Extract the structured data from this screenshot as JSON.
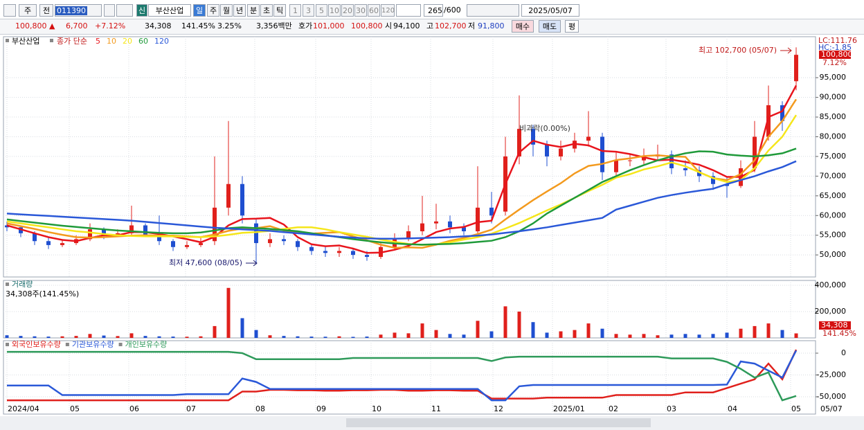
{
  "toolbar": {
    "period": "주",
    "prev": "전",
    "code": "011390",
    "new_tag": "신",
    "name": "부산산업",
    "intervals": [
      "일",
      "주",
      "월",
      "년",
      "분",
      "초",
      "틱"
    ],
    "minutes": [
      "1",
      "3",
      "5",
      "10",
      "20",
      "30",
      "60",
      "120"
    ],
    "count": "265",
    "max_count": "/600",
    "date": "2025/05/07"
  },
  "quote": {
    "price": "100,800 ▲",
    "change": "6,700",
    "change_pct": "+7.12%",
    "volume": "34,308",
    "volume_ratio": "141.45%",
    "turnover": "3.25%",
    "amount": "3,356백만",
    "ask_label": "호가",
    "ask": "101,000",
    "bid": "100,800",
    "open_label": "시",
    "open": "94,100",
    "high_label": "고",
    "high": "102,700",
    "low_label": "저",
    "low": "91,800",
    "buy": "매수",
    "sell": "매도",
    "avg": "평"
  },
  "chart_data": [
    {
      "type": "candlestick",
      "title": "부산산업",
      "ma_label": "종가 단순",
      "up_color": "#e0201c",
      "down_color": "#1f4fd0",
      "grid": true,
      "xlim": [
        -0.25,
        58.4
      ],
      "ylim": [
        44400,
        105400
      ],
      "yticks": [
        {
          "value": 50000,
          "label": "50,000"
        },
        {
          "value": 55000,
          "label": "55,000"
        },
        {
          "value": 60000,
          "label": "60,000"
        },
        {
          "value": 65000,
          "label": "65,000"
        },
        {
          "value": 70000,
          "label": "70,000"
        },
        {
          "value": 75000,
          "label": "75,000"
        },
        {
          "value": 80000,
          "label": "80,000"
        },
        {
          "value": 85000,
          "label": "85,000"
        },
        {
          "value": 90000,
          "label": "90,000"
        },
        {
          "value": 95000,
          "label": "95,000"
        }
      ],
      "candles": [
        [
          57500,
          58500,
          56000,
          57000
        ],
        [
          57000,
          57500,
          54500,
          55500
        ],
        [
          55500,
          56000,
          52500,
          53500
        ],
        [
          53500,
          54500,
          51500,
          52500
        ],
        [
          52500,
          54000,
          52000,
          53000
        ],
        [
          53000,
          55000,
          52500,
          54000
        ],
        [
          54000,
          58000,
          53500,
          56500
        ],
        [
          56500,
          57000,
          54000,
          55000
        ],
        [
          55000,
          56500,
          54500,
          55500
        ],
        [
          55500,
          62500,
          55000,
          57500
        ],
        [
          57500,
          58000,
          54500,
          55000
        ],
        [
          55000,
          60000,
          52500,
          53500
        ],
        [
          53500,
          54000,
          51000,
          52000
        ],
        [
          52000,
          53500,
          51500,
          52500
        ],
        [
          52500,
          54500,
          52000,
          53000
        ],
        [
          53500,
          75000,
          52500,
          62000
        ],
        [
          62000,
          84000,
          60000,
          68000
        ],
        [
          68000,
          70000,
          58000,
          60000
        ],
        [
          58000,
          59000,
          47600,
          53000
        ],
        [
          53000,
          55500,
          52000,
          54000
        ],
        [
          54000,
          55000,
          52500,
          53500
        ],
        [
          53500,
          54000,
          51000,
          52000
        ],
        [
          52000,
          52500,
          50000,
          51000
        ],
        [
          51000,
          52000,
          49500,
          50500
        ],
        [
          50500,
          52000,
          49500,
          51000
        ],
        [
          51000,
          51500,
          49000,
          50000
        ],
        [
          50000,
          51000,
          48500,
          49500
        ],
        [
          49500,
          53000,
          49000,
          52000
        ],
        [
          52000,
          55500,
          51500,
          54000
        ],
        [
          54000,
          57500,
          53500,
          56000
        ],
        [
          56000,
          65000,
          55000,
          58000
        ],
        [
          58000,
          63000,
          56500,
          58500
        ],
        [
          58500,
          60000,
          55500,
          57000
        ],
        [
          57000,
          58000,
          55000,
          56000
        ],
        [
          56000,
          72500,
          55500,
          62000
        ],
        [
          62000,
          66000,
          58000,
          60000
        ],
        [
          61000,
          80000,
          60000,
          75000
        ],
        [
          75000,
          90500,
          73000,
          82000
        ],
        [
          82000,
          83000,
          75000,
          78000
        ],
        [
          78000,
          79000,
          72500,
          75000
        ],
        [
          75000,
          79000,
          74000,
          77000
        ],
        [
          77000,
          81000,
          76000,
          79000
        ],
        [
          79000,
          86500,
          77500,
          80000
        ],
        [
          80000,
          81000,
          69000,
          71000
        ],
        [
          71000,
          76000,
          70000,
          74000
        ],
        [
          74000,
          75500,
          72500,
          74000
        ],
        [
          74000,
          77000,
          73000,
          75000
        ],
        [
          75000,
          78000,
          74000,
          75500
        ],
        [
          75500,
          76500,
          70500,
          72000
        ],
        [
          72000,
          74000,
          70000,
          71500
        ],
        [
          71500,
          72500,
          68500,
          70000
        ],
        [
          70000,
          71000,
          66500,
          68000
        ],
        [
          68000,
          70000,
          64500,
          67500
        ],
        [
          67500,
          74000,
          67000,
          72000
        ],
        [
          72000,
          84000,
          71000,
          80000
        ],
        [
          80000,
          93000,
          79000,
          88000
        ],
        [
          88000,
          89000,
          81500,
          84000
        ],
        [
          94100,
          102700,
          91800,
          100800
        ]
      ],
      "series": [
        {
          "name": "5",
          "color": "#e8141c",
          "values": [
            57500,
            56500,
            55500,
            54500,
            53800,
            53500,
            54300,
            55000,
            55000,
            55800,
            55800,
            55300,
            54700,
            54000,
            53200,
            54600,
            57500,
            59100,
            59200,
            59400,
            57700,
            54500,
            52700,
            52200,
            52400,
            51600,
            50500,
            50600,
            51300,
            52300,
            54000,
            55800,
            56700,
            57100,
            58300,
            58700,
            68000,
            76000,
            79000,
            78000,
            77400,
            78200,
            77800,
            76400,
            76200,
            75600,
            74800,
            74000,
            74200,
            73600,
            72900,
            71500,
            69800,
            69800,
            71600,
            85000,
            86500,
            93000
          ]
        },
        {
          "name": "10",
          "color": "#f39a1e",
          "values": [
            58000,
            57300,
            56600,
            55800,
            55100,
            54500,
            54400,
            54500,
            54700,
            54900,
            55000,
            54900,
            54900,
            54700,
            54500,
            55200,
            56100,
            56700,
            56800,
            57300,
            56200,
            55900,
            55400,
            55600,
            55800,
            54700,
            53700,
            52600,
            51800,
            51900,
            51800,
            52600,
            53600,
            54300,
            55300,
            56400,
            59000,
            61500,
            63900,
            66100,
            68200,
            70700,
            72600,
            73100,
            74100,
            74500,
            75100,
            75300,
            75000,
            74900,
            71000,
            69500,
            69000,
            70500,
            74000,
            80000,
            84000,
            89500
          ]
        },
        {
          "name": "20",
          "color": "#f5e61a",
          "values": [
            58500,
            58000,
            57500,
            57000,
            56500,
            56000,
            55700,
            55300,
            55000,
            54800,
            54700,
            54700,
            54700,
            54600,
            54500,
            54700,
            55100,
            55600,
            55800,
            56100,
            56600,
            57000,
            57000,
            56500,
            55800,
            55200,
            54600,
            53900,
            53300,
            52800,
            52500,
            52700,
            53200,
            53900,
            54500,
            55400,
            56700,
            58100,
            59700,
            61300,
            62800,
            64500,
            66200,
            67800,
            69600,
            70500,
            71700,
            72500,
            73500,
            72500,
            71000,
            69500,
            68500,
            69000,
            72000,
            76500,
            80000,
            85500
          ]
        },
        {
          "name": "60",
          "color": "#1f9a3a",
          "values": [
            59000,
            58600,
            58200,
            57800,
            57400,
            57100,
            56800,
            56500,
            56200,
            56000,
            55800,
            55600,
            55500,
            55500,
            55700,
            56200,
            56800,
            57000,
            56800,
            56600,
            56300,
            56000,
            55500,
            55000,
            54500,
            54000,
            53600,
            53200,
            52900,
            52700,
            52600,
            52700,
            52800,
            53000,
            53300,
            53600,
            54500,
            56000,
            58000,
            60500,
            62500,
            64500,
            66500,
            68500,
            70000,
            71500,
            72800,
            74000,
            75000,
            75800,
            76300,
            76200,
            75500,
            75200,
            75000,
            75300,
            75800,
            77000
          ]
        },
        {
          "name": "120",
          "color": "#2a58d8",
          "values": [
            60500,
            60300,
            60100,
            59900,
            59700,
            59500,
            59300,
            59100,
            58900,
            58700,
            58400,
            58100,
            57800,
            57500,
            57200,
            56900,
            56700,
            56500,
            56300,
            56100,
            55800,
            55500,
            55200,
            54900,
            54600,
            54400,
            54200,
            54100,
            54100,
            54200,
            54300,
            54400,
            54500,
            54700,
            54900,
            55200,
            55600,
            56000,
            56500,
            57000,
            57600,
            58200,
            58800,
            59400,
            61500,
            62500,
            63500,
            64500,
            65200,
            65800,
            66300,
            66800,
            68000,
            69000,
            70000,
            71200,
            72300,
            73800
          ]
        }
      ],
      "high_label": "최고 102,700 (05/07)",
      "low_label": "최저 47,600 (08/05)",
      "event_label": "비과락(0.00%)",
      "lc_label": "LC:111.76",
      "hc_label": "HC:-1.85",
      "last_price": "100,800",
      "last_pct": "7.12%"
    },
    {
      "type": "bar",
      "title": "거래량",
      "subtitle": "34,308주(141.45%)",
      "xlim": [
        -0.25,
        58.4
      ],
      "ylim": [
        0,
        436800
      ],
      "yticks": [
        {
          "value": 200000,
          "label": "200,000"
        },
        {
          "value": 400000,
          "label": "400,000"
        }
      ],
      "values": [
        20000,
        15000,
        12000,
        10000,
        12000,
        15000,
        30000,
        18000,
        14000,
        35000,
        15000,
        12000,
        10000,
        9000,
        12000,
        90000,
        380000,
        150000,
        60000,
        20000,
        15000,
        12000,
        10000,
        9000,
        12000,
        8000,
        10000,
        25000,
        40000,
        35000,
        110000,
        60000,
        30000,
        25000,
        130000,
        50000,
        240000,
        200000,
        120000,
        40000,
        50000,
        60000,
        110000,
        70000,
        30000,
        25000,
        30000,
        20000,
        25000,
        30000,
        25000,
        30000,
        40000,
        70000,
        90000,
        110000,
        60000,
        34308
      ],
      "last_label": "34,308",
      "last_pct": "141.45%"
    },
    {
      "type": "line",
      "xlim": [
        -0.25,
        58.4
      ],
      "ylim": [
        -69800,
        14300
      ],
      "yticks": [
        {
          "value": 0,
          "label": "0"
        },
        {
          "value": -25000,
          "label": "-25,000"
        },
        {
          "value": -50000,
          "label": "-50,000"
        }
      ],
      "xticks": [
        {
          "value": 0,
          "label": "2024/04"
        },
        {
          "value": 4.5,
          "label": "05"
        },
        {
          "value": 8.8,
          "label": "06"
        },
        {
          "value": 12.9,
          "label": "07"
        },
        {
          "value": 17.9,
          "label": "08"
        },
        {
          "value": 22.3,
          "label": "09"
        },
        {
          "value": 26.3,
          "label": "10"
        },
        {
          "value": 30.6,
          "label": "11"
        },
        {
          "value": 35.1,
          "label": "12"
        },
        {
          "value": 39.4,
          "label": "2025/01"
        },
        {
          "value": 43.4,
          "label": "02"
        },
        {
          "value": 47.6,
          "label": "03"
        },
        {
          "value": 52,
          "label": "04"
        },
        {
          "value": 56.6,
          "label": "05"
        }
      ],
      "last_date": "05/07",
      "series": [
        {
          "name": "외국인보유수량",
          "color": "#e0201c",
          "values": [
            -54000,
            -54000,
            -54000,
            -54000,
            -54000,
            -54000,
            -54000,
            -54000,
            -54000,
            -54000,
            -54000,
            -54000,
            -54000,
            -54000,
            -54000,
            -54000,
            -54000,
            -44000,
            -44000,
            -42000,
            -42000,
            -42500,
            -42500,
            -43000,
            -43000,
            -42500,
            -42500,
            -42000,
            -42000,
            -43000,
            -43000,
            -42500,
            -42500,
            -43000,
            -43000,
            -52000,
            -52000,
            -52000,
            -52000,
            -51000,
            -51000,
            -51000,
            -51000,
            -51000,
            -48000,
            -48000,
            -48000,
            -48000,
            -48000,
            -45000,
            -45000,
            -45000,
            -40000,
            -35000,
            -30000,
            -12000,
            -30000,
            4000
          ]
        },
        {
          "name": "기관보유수량",
          "color": "#2a58d8",
          "values": [
            -37000,
            -37000,
            -37000,
            -37000,
            -48000,
            -48000,
            -48000,
            -48000,
            -48000,
            -48000,
            -48000,
            -48000,
            -48000,
            -47000,
            -47000,
            -47000,
            -47000,
            -29000,
            -33000,
            -41000,
            -41000,
            -41000,
            -41000,
            -41000,
            -41000,
            -41000,
            -41000,
            -41000,
            -41000,
            -41000,
            -41000,
            -41000,
            -41000,
            -41000,
            -41000,
            -54000,
            -54000,
            -38000,
            -36500,
            -36500,
            -36500,
            -36500,
            -36500,
            -36500,
            -36500,
            -36500,
            -36500,
            -36500,
            -36500,
            -36500,
            -36500,
            -36500,
            -36000,
            -9500,
            -12000,
            -20000,
            -28000,
            3000
          ]
        },
        {
          "name": "개인보유수량",
          "color": "#2e9a5a",
          "values": [
            1500,
            1500,
            1500,
            1500,
            1500,
            1500,
            1500,
            1500,
            1500,
            1500,
            1500,
            1500,
            1500,
            1500,
            1500,
            1500,
            1500,
            0,
            -7000,
            -7000,
            -7000,
            -7000,
            -7000,
            -7000,
            -7000,
            -5500,
            -5500,
            -5500,
            -5500,
            -5500,
            -5500,
            -5500,
            -5500,
            -5500,
            -5500,
            -9000,
            -5000,
            -4000,
            -4000,
            -4000,
            -4000,
            -4000,
            -4000,
            -4000,
            -4000,
            -4000,
            -4000,
            -4000,
            -6000,
            -6000,
            -6000,
            -6000,
            -10000,
            -18000,
            -28000,
            -22000,
            -54000,
            -49000
          ]
        }
      ]
    }
  ]
}
